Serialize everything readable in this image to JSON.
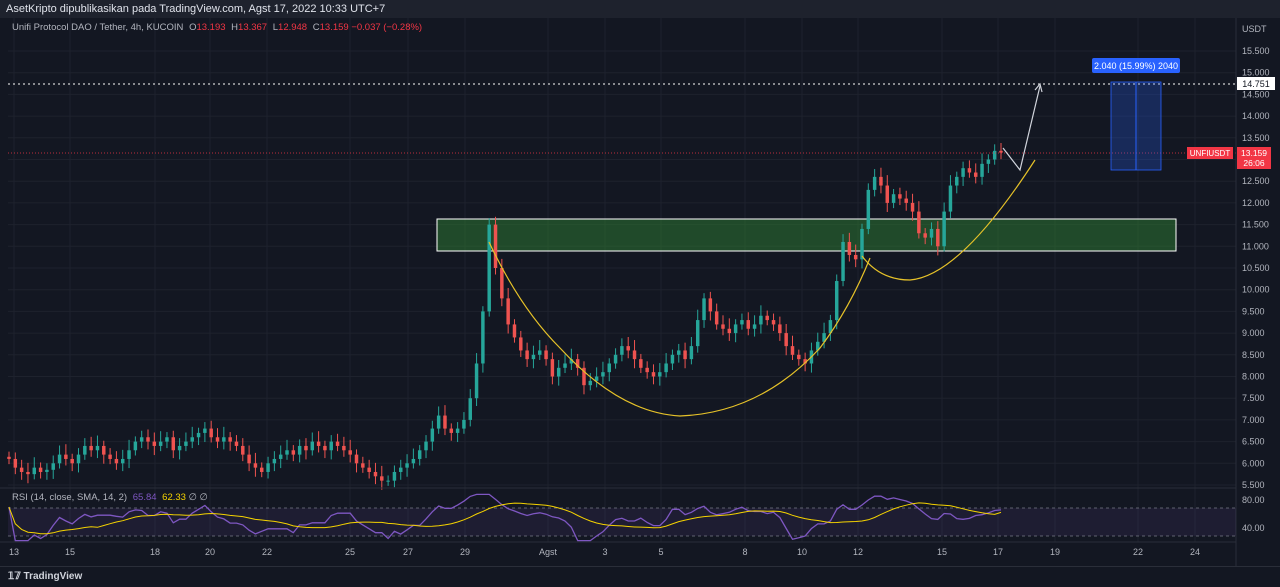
{
  "header": {
    "publish_text": "AsetKripto dipublikasikan pada TradingView.com, Agst 17, 2022 10:33 UTC+7"
  },
  "legend": {
    "symbol": "Unifi Protocol DAO / Tether, 4h, KUCOIN",
    "o_label": "O",
    "o_value": "13.193",
    "h_label": "H",
    "h_value": "13.367",
    "l_label": "L",
    "l_value": "12.948",
    "c_label": "C",
    "c_value": "13.159",
    "change": "−0.037 (−0.28%)"
  },
  "rsi_legend": {
    "label": "RSI (14, close, SMA, 14, 2)",
    "rsi_value": "65.84",
    "sma_value": "62.33",
    "extra": "∅ ∅"
  },
  "footer": {
    "brand": "TradingView"
  },
  "price_axis": {
    "currency": "USDT",
    "ticks": [
      "15.500",
      "15.000",
      "14.500",
      "14.000",
      "13.500",
      "13.000",
      "12.500",
      "12.000",
      "11.500",
      "11.000",
      "10.500",
      "10.000",
      "9.500",
      "9.000",
      "8.500",
      "8.000",
      "7.500",
      "7.000",
      "6.500",
      "6.000",
      "5.500"
    ],
    "target_label": "14.751",
    "current_symbol": "UNFIUSDT",
    "current_price": "13.159",
    "countdown": "26:06"
  },
  "rsi_axis": {
    "ticks": [
      "80.00",
      "40.00"
    ]
  },
  "time_axis": {
    "ticks": [
      "13",
      "15",
      "18",
      "20",
      "22",
      "25",
      "27",
      "29",
      "Agst",
      "3",
      "5",
      "8",
      "10",
      "12",
      "15",
      "17",
      "19",
      "22",
      "24"
    ]
  },
  "measure_box": {
    "label": "2.040 (15.99%) 2040"
  },
  "colors": {
    "up": "#26a69a",
    "down": "#ef5350",
    "background": "#131722",
    "zone_fill": "#2e7d32",
    "curve": "#e6c229",
    "rsi": "#7e57c2",
    "rsi_sma": "#f5d300",
    "target_line": "#ffffff",
    "measure": "#2962ff"
  },
  "chart_data": {
    "type": "candlestick",
    "title": "Unifi Protocol DAO / Tether, 4h, KUCOIN",
    "y_unit": "USDT",
    "ylim": [
      5.4,
      15.7
    ],
    "x_range": [
      "Jul 13",
      "Aug 24"
    ],
    "support_resistance_zone": [
      10.9,
      11.65
    ],
    "target_price": 14.751,
    "current_price": 13.159,
    "measure": {
      "low": 12.71,
      "high": 14.751,
      "change": 2.04,
      "percent": 15.99
    },
    "closes": [
      6.1,
      5.9,
      5.8,
      5.75,
      5.9,
      5.8,
      5.85,
      6.0,
      6.2,
      6.1,
      6.0,
      6.2,
      6.4,
      6.3,
      6.4,
      6.2,
      6.1,
      6.0,
      6.1,
      6.3,
      6.5,
      6.6,
      6.5,
      6.4,
      6.5,
      6.6,
      6.3,
      6.4,
      6.5,
      6.6,
      6.7,
      6.8,
      6.6,
      6.5,
      6.6,
      6.5,
      6.4,
      6.2,
      6.0,
      5.9,
      5.8,
      6.0,
      6.1,
      6.2,
      6.3,
      6.2,
      6.4,
      6.3,
      6.5,
      6.4,
      6.3,
      6.5,
      6.4,
      6.3,
      6.2,
      6.0,
      5.9,
      5.8,
      5.7,
      5.6,
      5.6,
      5.8,
      5.9,
      6.0,
      6.1,
      6.3,
      6.5,
      6.8,
      7.1,
      6.8,
      6.7,
      6.8,
      7.0,
      7.5,
      8.3,
      9.5,
      11.5,
      10.5,
      9.8,
      9.2,
      8.9,
      8.6,
      8.4,
      8.5,
      8.6,
      8.4,
      8.0,
      8.2,
      8.3,
      8.4,
      8.2,
      7.8,
      7.9,
      8.0,
      8.1,
      8.3,
      8.5,
      8.7,
      8.6,
      8.4,
      8.2,
      8.1,
      8.0,
      8.1,
      8.3,
      8.5,
      8.6,
      8.4,
      8.7,
      9.3,
      9.8,
      9.5,
      9.2,
      9.1,
      9.0,
      9.2,
      9.3,
      9.1,
      9.2,
      9.4,
      9.3,
      9.2,
      9.0,
      8.7,
      8.5,
      8.4,
      8.3,
      8.6,
      8.8,
      9.0,
      9.3,
      10.2,
      11.1,
      10.8,
      10.7,
      11.4,
      12.3,
      12.6,
      12.4,
      12.0,
      12.2,
      12.1,
      12.0,
      11.8,
      11.3,
      11.2,
      11.4,
      11.0,
      11.8,
      12.4,
      12.6,
      12.8,
      12.7,
      12.6,
      12.9,
      13.0,
      13.2,
      13.159
    ],
    "rsi": {
      "value": 65.84,
      "sma": 62.33,
      "levels": [
        70,
        30
      ]
    },
    "time_ticks": [
      "13",
      "15",
      "18",
      "20",
      "22",
      "25",
      "27",
      "29",
      "Agst",
      "3",
      "5",
      "8",
      "10",
      "12",
      "15",
      "17",
      "19",
      "22",
      "24"
    ]
  }
}
